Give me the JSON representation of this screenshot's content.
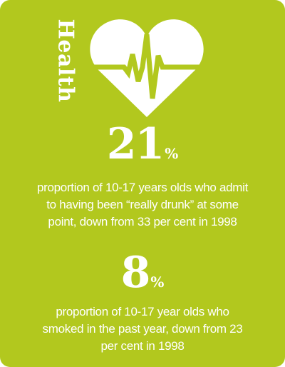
{
  "heading": "Health",
  "icon": "heartbeat-heart-icon",
  "colors": {
    "background": "#b2c81e",
    "foreground": "#ffffff"
  },
  "stats": [
    {
      "value": "21",
      "unit": "%",
      "description_lines": [
        "proportion of 10-17 years olds who admit",
        "to having been “really drunk” at some",
        "point, down from 33 per cent in 1998"
      ]
    },
    {
      "value": "8",
      "unit": "%",
      "description_lines": [
        "proportion of 10-17 year olds who",
        "smoked in the past year, down  from 23",
        "per cent in 1998"
      ]
    }
  ]
}
